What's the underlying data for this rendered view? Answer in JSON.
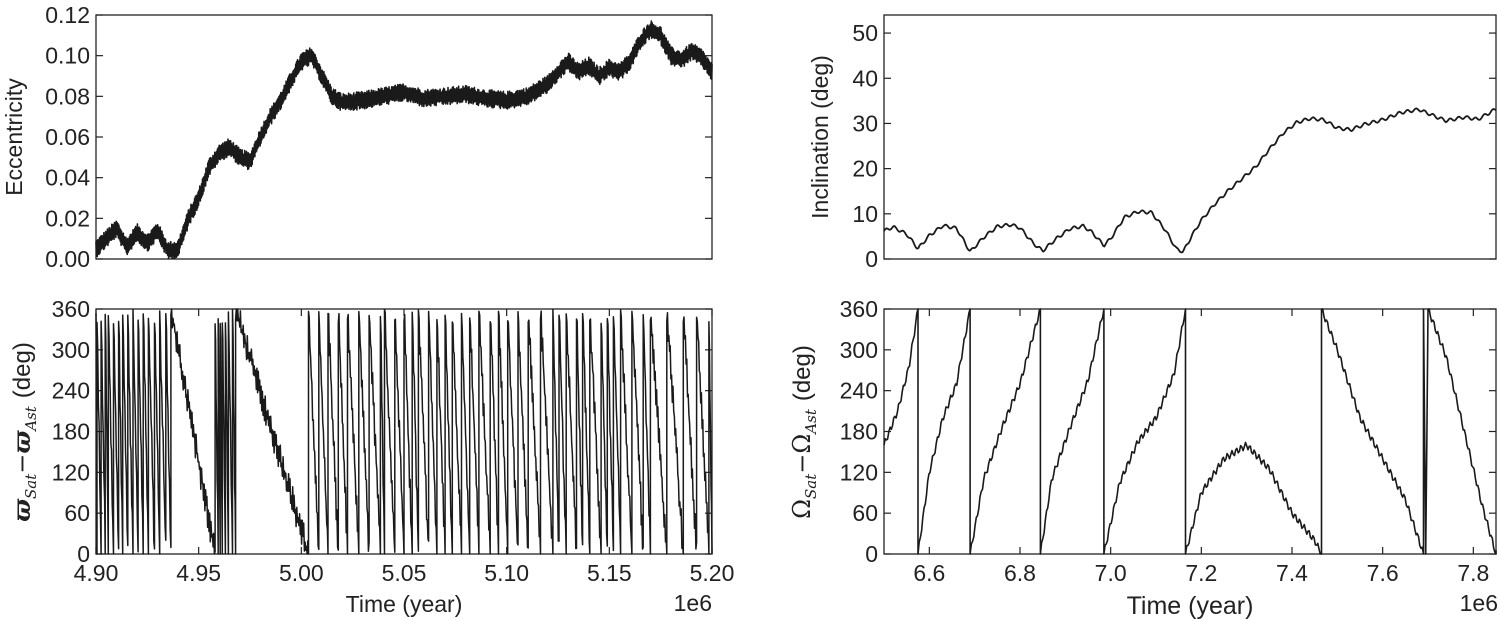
{
  "chart_data": [
    {
      "id": "ecc",
      "type": "line",
      "title": "",
      "xlabel": "",
      "ylabel": "Eccentricity",
      "xlim": [
        4.9,
        5.2
      ],
      "ylim": [
        0.0,
        0.12
      ],
      "xticks": [],
      "yticks": [
        0.0,
        0.02,
        0.04,
        0.06,
        0.08,
        0.1,
        0.12
      ],
      "yticklabels": [
        "0.00",
        "0.02",
        "0.04",
        "0.06",
        "0.08",
        "0.10",
        "0.12"
      ],
      "series": [
        {
          "values_description_free": true,
          "x": [
            4.9,
            4.905,
            4.91,
            4.915,
            4.92,
            4.925,
            4.93,
            4.935,
            4.94,
            4.945,
            4.95,
            4.955,
            4.96,
            4.965,
            4.97,
            4.975,
            4.98,
            4.985,
            4.99,
            4.995,
            5.0,
            5.005,
            5.01,
            5.015,
            5.02,
            5.03,
            5.04,
            5.05,
            5.06,
            5.07,
            5.08,
            5.09,
            5.1,
            5.11,
            5.12,
            5.125,
            5.13,
            5.135,
            5.14,
            5.145,
            5.15,
            5.155,
            5.16,
            5.165,
            5.17,
            5.175,
            5.18,
            5.185,
            5.19,
            5.195,
            5.2
          ],
          "y": [
            0.005,
            0.01,
            0.015,
            0.006,
            0.013,
            0.008,
            0.014,
            0.004,
            0.005,
            0.02,
            0.03,
            0.045,
            0.052,
            0.055,
            0.05,
            0.048,
            0.06,
            0.07,
            0.078,
            0.088,
            0.097,
            0.1,
            0.09,
            0.08,
            0.077,
            0.078,
            0.08,
            0.082,
            0.079,
            0.08,
            0.081,
            0.079,
            0.078,
            0.08,
            0.086,
            0.092,
            0.097,
            0.092,
            0.095,
            0.09,
            0.094,
            0.092,
            0.097,
            0.107,
            0.113,
            0.11,
            0.1,
            0.098,
            0.102,
            0.099,
            0.092
          ],
          "noise_amplitude": 0.004
        }
      ]
    },
    {
      "id": "inc",
      "type": "line",
      "title": "",
      "xlabel": "",
      "ylabel": "Inclination (deg)",
      "xlim": [
        6.5,
        7.85
      ],
      "ylim": [
        0,
        54
      ],
      "xticks": [],
      "yticks": [
        0,
        10,
        20,
        30,
        40,
        50
      ],
      "yticklabels": [
        "0",
        "10",
        "20",
        "30",
        "40",
        "50"
      ],
      "series": [
        {
          "x": [
            6.5,
            6.52,
            6.55,
            6.575,
            6.6,
            6.63,
            6.66,
            6.69,
            6.72,
            6.75,
            6.78,
            6.8,
            6.83,
            6.85,
            6.88,
            6.91,
            6.94,
            6.96,
            6.985,
            7.0,
            7.03,
            7.06,
            7.09,
            7.12,
            7.145,
            7.16,
            7.18,
            7.2,
            7.23,
            7.26,
            7.29,
            7.32,
            7.35,
            7.38,
            7.41,
            7.44,
            7.47,
            7.5,
            7.53,
            7.56,
            7.6,
            7.64,
            7.68,
            7.71,
            7.74,
            7.78,
            7.81,
            7.85
          ],
          "y": [
            6.2,
            7.1,
            5.5,
            2.3,
            5.2,
            7.4,
            6.8,
            1.6,
            4.8,
            7.2,
            7.6,
            6.9,
            3.4,
            1.8,
            4.5,
            6.7,
            7.3,
            5.8,
            3.0,
            4.5,
            9.2,
            10.5,
            10.3,
            6.5,
            2.2,
            1.6,
            5.3,
            8.6,
            12.2,
            15.2,
            17.8,
            20.4,
            24.3,
            27.8,
            30.2,
            31.1,
            30.8,
            29.0,
            28.6,
            29.8,
            30.8,
            32.4,
            33.1,
            31.8,
            30.6,
            31.4,
            30.9,
            33.2
          ]
        }
      ]
    },
    {
      "id": "varpi",
      "type": "line",
      "title": "",
      "xlabel": "Time (year)",
      "ylabel_parts": {
        "symbol": "ϖ",
        "sub1": "Sat",
        "minus": "−",
        "sub2": "Ast",
        "unit": "(deg)"
      },
      "xlim": [
        4.9,
        5.2
      ],
      "ylim": [
        0,
        360
      ],
      "xticks": [
        4.9,
        4.95,
        5.0,
        5.05,
        5.1,
        5.15,
        5.2
      ],
      "xticklabels": [
        "4.90",
        "4.95",
        "5.00",
        "5.05",
        "5.10",
        "5.15",
        "5.20"
      ],
      "x_offset_label": "1e6",
      "yticks": [
        0,
        60,
        120,
        180,
        240,
        300,
        360
      ],
      "yticklabels": [
        "0",
        "60",
        "120",
        "180",
        "240",
        "300",
        "360"
      ],
      "series": [
        {
          "wrap_times": [
            4.9005,
            4.9025,
            4.9045,
            4.906,
            4.9085,
            4.911,
            4.913,
            4.9155,
            4.918,
            4.9205,
            4.923,
            4.9255,
            4.9285,
            4.931,
            4.934,
            4.9365,
            4.958,
            4.9595,
            4.9605,
            4.9615,
            4.963,
            4.9645,
            4.9665,
            4.968,
            5.0035,
            5.0085,
            5.013,
            5.018,
            5.0225,
            5.028,
            5.033,
            5.0385,
            5.0405,
            5.0455,
            5.05,
            5.054,
            5.057,
            5.062,
            5.066,
            5.07,
            5.0735,
            5.078,
            5.082,
            5.0865,
            5.092,
            5.096,
            5.1005,
            5.1055,
            5.1105,
            5.1165,
            5.1225,
            5.1255,
            5.129,
            5.134,
            5.137,
            5.1405,
            5.146,
            5.149,
            5.152,
            5.1555,
            5.161,
            5.1665,
            5.17,
            5.178,
            5.186,
            5.1925,
            5.1985
          ],
          "direction": "decreasing",
          "noise_amplitude": 22
        }
      ]
    },
    {
      "id": "omega",
      "type": "line",
      "title": "",
      "xlabel": "Time (year)",
      "ylabel_parts": {
        "symbol": "Ω",
        "sub1": "Sat",
        "minus": "−",
        "sub2": "Ast",
        "unit": "(deg)"
      },
      "xlim": [
        6.5,
        7.85
      ],
      "ylim": [
        0,
        360
      ],
      "xticks": [
        6.6,
        6.8,
        7.0,
        7.2,
        7.4,
        7.6,
        7.8
      ],
      "xticklabels": [
        "6.6",
        "6.8",
        "7.0",
        "7.2",
        "7.4",
        "7.6",
        "7.8"
      ],
      "x_offset_label": "1e6",
      "yticks": [
        0,
        60,
        120,
        180,
        240,
        300,
        360
      ],
      "yticklabels": [
        "0",
        "60",
        "120",
        "180",
        "240",
        "300",
        "360"
      ],
      "series": [
        {
          "segments": [
            {
              "x": [
                6.5,
                6.53,
                6.555,
                6.575
              ],
              "y": [
                160,
                210,
                275,
                360
              ]
            },
            {
              "x": [
                6.575,
                6.6,
                6.63,
                6.66,
                6.69
              ],
              "y": [
                0,
                120,
                200,
                250,
                360
              ]
            },
            {
              "x": [
                6.69,
                6.72,
                6.76,
                6.8,
                6.845
              ],
              "y": [
                0,
                110,
                185,
                250,
                360
              ]
            },
            {
              "x": [
                6.845,
                6.87,
                6.91,
                6.95,
                6.985
              ],
              "y": [
                0,
                110,
                185,
                255,
                360
              ]
            },
            {
              "x": [
                6.985,
                7.02,
                7.06,
                7.1,
                7.14,
                7.165
              ],
              "y": [
                0,
                105,
                165,
                200,
                265,
                360
              ]
            },
            {
              "x": [
                7.165,
                7.2,
                7.25,
                7.3,
                7.35,
                7.4,
                7.45,
                7.465
              ],
              "y": [
                0,
                90,
                140,
                160,
                125,
                60,
                20,
                0
              ]
            },
            {
              "x": [
                7.465,
                7.5,
                7.55,
                7.6,
                7.65,
                7.69
              ],
              "y": [
                360,
                300,
                200,
                140,
                80,
                0
              ]
            },
            {
              "x": [
                7.69,
                7.695,
                7.7
              ],
              "y": [
                360,
                0,
                360
              ]
            },
            {
              "x": [
                7.7,
                7.74,
                7.78,
                7.82,
                7.85
              ],
              "y": [
                360,
                290,
                180,
                70,
                0
              ]
            },
            {
              "x": [
                7.85,
                7.85
              ],
              "y": [
                0,
                360
              ]
            }
          ],
          "noise_amplitude": 5
        }
      ]
    }
  ]
}
